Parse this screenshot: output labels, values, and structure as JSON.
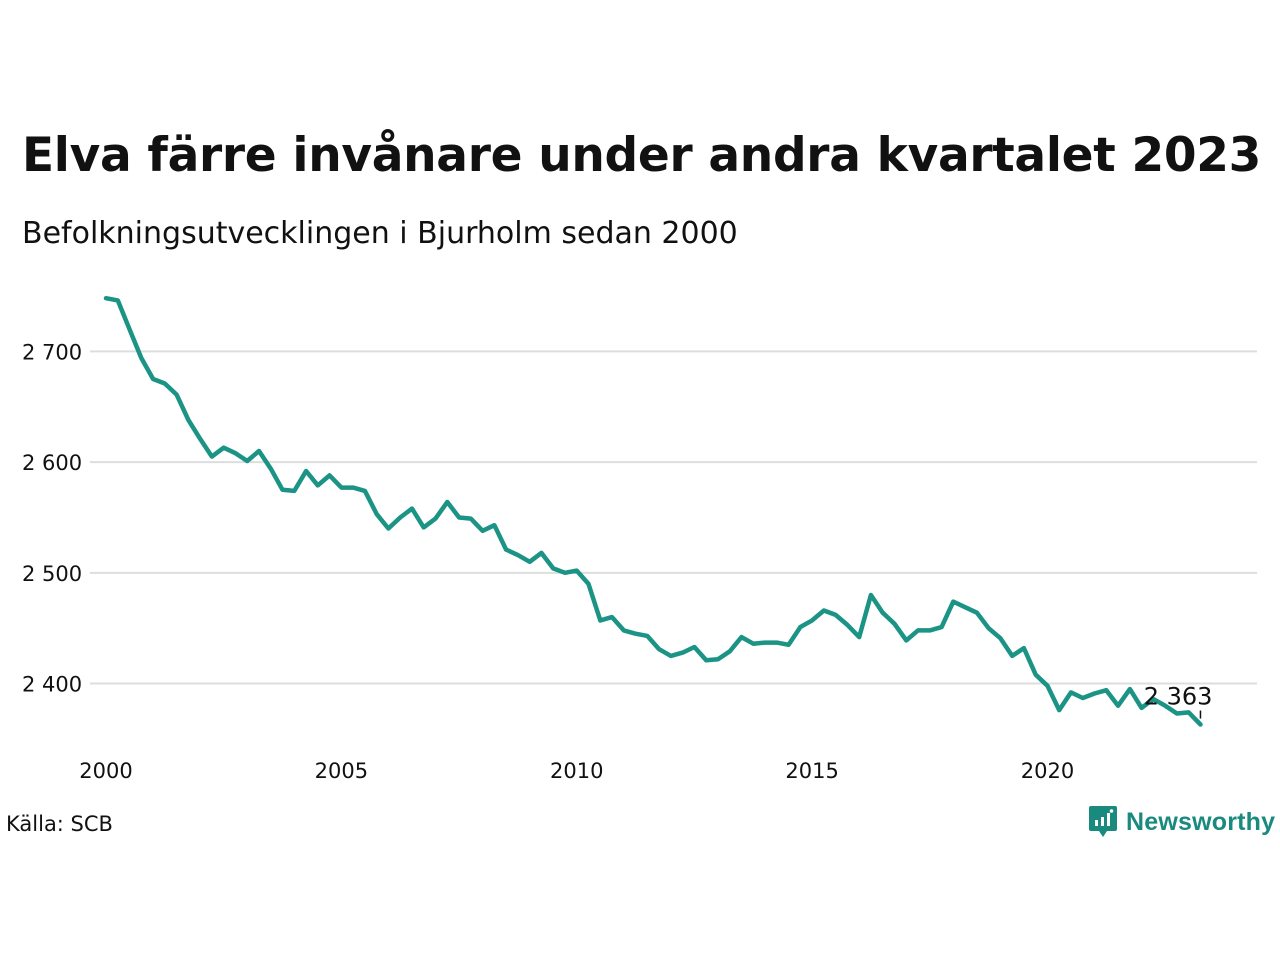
{
  "title": "Elva färre invånare under andra kvartalet 2023",
  "subtitle": "Befolkningsutvecklingen i Bjurholm sedan 2000",
  "source": "Källa: SCB",
  "brand": {
    "name": "Newsworthy",
    "icon": "newsworthy-logo-icon",
    "color": "#1a8a7e"
  },
  "chart_data": {
    "type": "line",
    "title": "Elva färre invånare under andra kvartalet 2023",
    "subtitle": "Befolkningsutvecklingen i Bjurholm sedan 2000",
    "xlabel": "",
    "ylabel": "",
    "x_ticks": [
      2000,
      2005,
      2010,
      2015,
      2020
    ],
    "x_tick_labels": [
      "2000",
      "2005",
      "2010",
      "2015",
      "2020"
    ],
    "y_ticks": [
      2400,
      2500,
      2600,
      2700
    ],
    "y_tick_labels": [
      "2 400",
      "2 500",
      "2 600",
      "2 700"
    ],
    "xlim": [
      2000,
      2023.75
    ],
    "ylim": [
      2340,
      2750
    ],
    "grid": true,
    "legend": "none",
    "line_color": "#1b9385",
    "grid_color": "#dddddd",
    "end_label": "2 363",
    "series": [
      {
        "x": [
          2000.0,
          2000.25,
          2000.5,
          2000.75,
          2001.0,
          2001.25,
          2001.5,
          2001.75,
          2002.0,
          2002.25,
          2002.5,
          2002.75,
          2003.0,
          2003.25,
          2003.5,
          2003.75,
          2004.0,
          2004.25,
          2004.5,
          2004.75,
          2005.0,
          2005.25,
          2005.5,
          2005.75,
          2006.0,
          2006.25,
          2006.5,
          2006.75,
          2007.0,
          2007.25,
          2007.5,
          2007.75,
          2008.0,
          2008.25,
          2008.5,
          2008.75,
          2009.0,
          2009.25,
          2009.5,
          2009.75,
          2010.0,
          2010.25,
          2010.5,
          2010.75,
          2011.0,
          2011.25,
          2011.5,
          2011.75,
          2012.0,
          2012.25,
          2012.5,
          2012.75,
          2013.0,
          2013.25,
          2013.5,
          2013.75,
          2014.0,
          2014.25,
          2014.5,
          2014.75,
          2015.0,
          2015.25,
          2015.5,
          2015.75,
          2016.0,
          2016.25,
          2016.5,
          2016.75,
          2017.0,
          2017.25,
          2017.5,
          2017.75,
          2018.0,
          2018.25,
          2018.5,
          2018.75,
          2019.0,
          2019.25,
          2019.5,
          2019.75,
          2020.0,
          2020.25,
          2020.5,
          2020.75,
          2021.0,
          2021.25,
          2021.5,
          2021.75,
          2022.0,
          2022.25,
          2022.5,
          2022.75,
          2023.0,
          2023.25
        ],
        "values": [
          2748,
          2746,
          2720,
          2694,
          2675,
          2671,
          2661,
          2638,
          2621,
          2605,
          2613,
          2608,
          2601,
          2610,
          2594,
          2575,
          2574,
          2592,
          2579,
          2588,
          2577,
          2577,
          2574,
          2553,
          2540,
          2550,
          2558,
          2541,
          2549,
          2564,
          2550,
          2549,
          2538,
          2543,
          2521,
          2516,
          2510,
          2518,
          2504,
          2500,
          2502,
          2490,
          2457,
          2460,
          2448,
          2445,
          2443,
          2431,
          2425,
          2428,
          2433,
          2421,
          2422,
          2429,
          2442,
          2436,
          2437,
          2437,
          2435,
          2451,
          2457,
          2466,
          2462,
          2453,
          2442,
          2480,
          2464,
          2454,
          2439,
          2448,
          2448,
          2451,
          2474,
          2469,
          2464,
          2450,
          2441,
          2425,
          2432,
          2408,
          2398,
          2376,
          2392,
          2387,
          2391,
          2394,
          2380,
          2395,
          2378,
          2386,
          2380,
          2373,
          2374,
          2363
        ]
      }
    ]
  }
}
